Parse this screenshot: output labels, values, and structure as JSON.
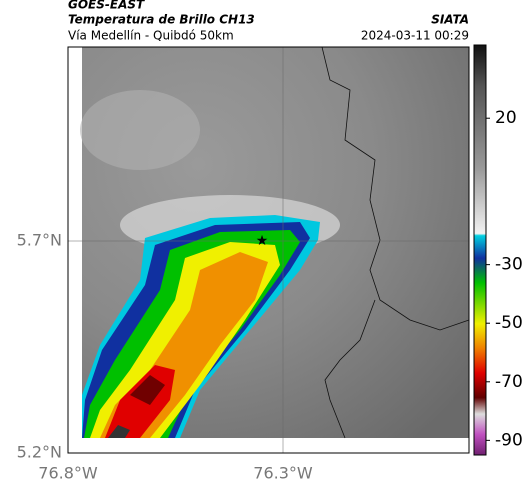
{
  "header": {
    "title": "GOES-EAST",
    "subtitle": "Temperatura de Brillo CH13",
    "location": "Vía Medellín - Quibdó 50km",
    "source": "SIATA",
    "datetime": "2024-03-11 00:29"
  },
  "map": {
    "lat_labels": [
      "5.7°N",
      "5.2°N"
    ],
    "lon_labels": [
      "76.8°W",
      "76.3°W"
    ]
  },
  "colorbar": {
    "ticks": [
      20,
      -30,
      -50,
      -70,
      -90
    ],
    "lim": [
      -95,
      45
    ]
  }
}
